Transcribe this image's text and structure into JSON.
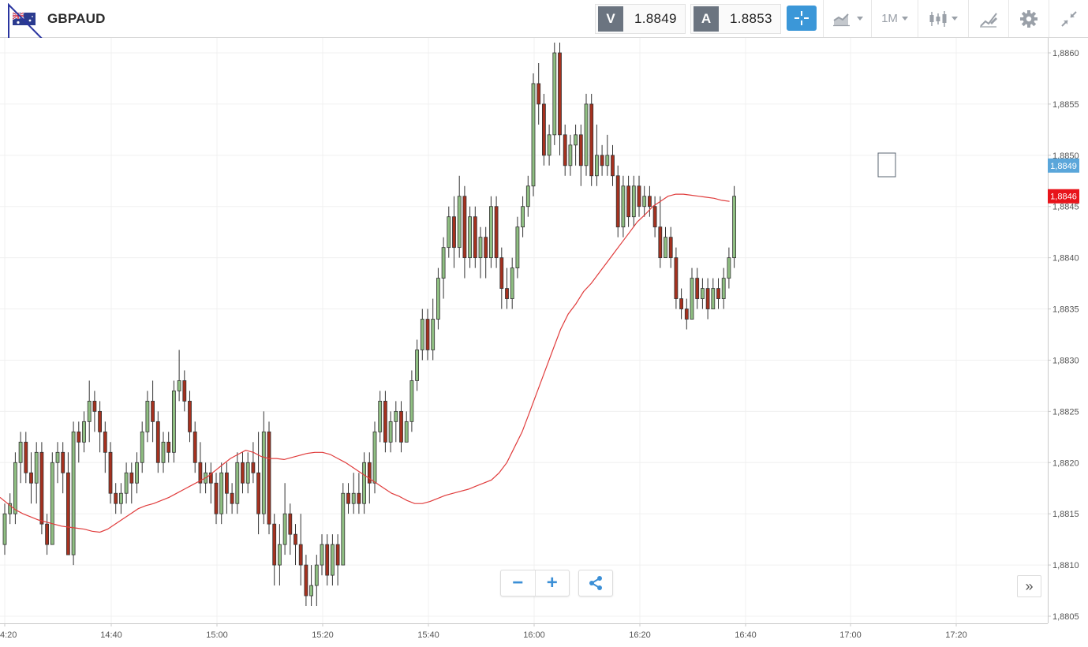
{
  "header": {
    "symbol": "GBPAUD",
    "bid": {
      "letter": "V",
      "value": "1.8849"
    },
    "ask": {
      "letter": "A",
      "value": "1.8853"
    },
    "timeframe_label": "1M",
    "icons": [
      "flag-gb-au-icon",
      "crosshair-icon",
      "chart-type-icon",
      "candlestick-icon",
      "drawing-tools-icon",
      "gear-icon",
      "collapse-icon"
    ]
  },
  "colors": {
    "bull": "#8fbf82",
    "bear": "#a5311f",
    "ma_line": "#e03c3c",
    "last_price_badge": "#e8141b",
    "bid_badge": "#5aa6da",
    "accent": "#3b97d8"
  },
  "chart_data": {
    "type": "candlestick",
    "title": "GBPAUD",
    "interval": "1M",
    "x_tick_labels": [
      "4:20",
      "14:40",
      "15:00",
      "15:20",
      "15:40",
      "16:00",
      "16:20",
      "16:40",
      "17:00",
      "17:20"
    ],
    "y_tick_labels": [
      "1,8805",
      "1,8810",
      "1,8815",
      "1,8820",
      "1,8825",
      "1,8830",
      "1,8835",
      "1,8840",
      "1,8845",
      "1,8850",
      "1,8855",
      "1,8860"
    ],
    "ylim": [
      1.8804,
      1.8861
    ],
    "y_ticks": [
      1.8805,
      1.881,
      1.8815,
      1.882,
      1.8825,
      1.883,
      1.8835,
      1.884,
      1.8845,
      1.885,
      1.8855,
      1.886
    ],
    "grid": true,
    "badges": {
      "bid": {
        "value": 1.8849,
        "label": "1,8849"
      },
      "last": {
        "value": 1.8846,
        "label": "1,8846"
      }
    },
    "candles": [
      [
        1.8812,
        1.8815,
        1.8811,
        1.8816
      ],
      [
        1.8815,
        1.8816,
        1.8814,
        1.8817
      ],
      [
        1.8815,
        1.882,
        1.8814,
        1.8821
      ],
      [
        1.882,
        1.8822,
        1.8818,
        1.8823
      ],
      [
        1.8822,
        1.8819,
        1.8818,
        1.8823
      ],
      [
        1.8819,
        1.8818,
        1.8816,
        1.8821
      ],
      [
        1.8818,
        1.8821,
        1.8816,
        1.8822
      ],
      [
        1.8821,
        1.8814,
        1.8813,
        1.8822
      ],
      [
        1.8814,
        1.8812,
        1.8811,
        1.8815
      ],
      [
        1.8812,
        1.882,
        1.8812,
        1.8821
      ],
      [
        1.882,
        1.8821,
        1.8818,
        1.8822
      ],
      [
        1.8821,
        1.8819,
        1.8817,
        1.8822
      ],
      [
        1.8819,
        1.8811,
        1.8811,
        1.8821
      ],
      [
        1.8811,
        1.8823,
        1.881,
        1.8824
      ],
      [
        1.8823,
        1.8822,
        1.882,
        1.8824
      ],
      [
        1.8822,
        1.8824,
        1.8821,
        1.8825
      ],
      [
        1.8824,
        1.8826,
        1.8822,
        1.8828
      ],
      [
        1.8826,
        1.8825,
        1.8823,
        1.8827
      ],
      [
        1.8825,
        1.8823,
        1.8821,
        1.8826
      ],
      [
        1.8823,
        1.8821,
        1.8819,
        1.8824
      ],
      [
        1.8821,
        1.8817,
        1.8816,
        1.8822
      ],
      [
        1.8817,
        1.8816,
        1.8815,
        1.8818
      ],
      [
        1.8816,
        1.8817,
        1.8815,
        1.8818
      ],
      [
        1.8817,
        1.8819,
        1.8816,
        1.882
      ],
      [
        1.8819,
        1.8818,
        1.8816,
        1.882
      ],
      [
        1.8818,
        1.882,
        1.8817,
        1.8821
      ],
      [
        1.882,
        1.8823,
        1.8819,
        1.8824
      ],
      [
        1.8823,
        1.8826,
        1.8822,
        1.8827
      ],
      [
        1.8826,
        1.8824,
        1.8822,
        1.8828
      ],
      [
        1.8824,
        1.882,
        1.8819,
        1.8825
      ],
      [
        1.882,
        1.8822,
        1.8819,
        1.8823
      ],
      [
        1.8822,
        1.8821,
        1.882,
        1.8823
      ],
      [
        1.8821,
        1.8827,
        1.882,
        1.8828
      ],
      [
        1.8827,
        1.8828,
        1.8826,
        1.8831
      ],
      [
        1.8828,
        1.8826,
        1.8825,
        1.8829
      ],
      [
        1.8826,
        1.8823,
        1.8822,
        1.8827
      ],
      [
        1.8823,
        1.882,
        1.8819,
        1.8824
      ],
      [
        1.882,
        1.8818,
        1.8817,
        1.8822
      ],
      [
        1.8818,
        1.8819,
        1.8817,
        1.882
      ],
      [
        1.8819,
        1.8818,
        1.8816,
        1.882
      ],
      [
        1.8818,
        1.8815,
        1.8814,
        1.8819
      ],
      [
        1.8815,
        1.8819,
        1.8814,
        1.882
      ],
      [
        1.8819,
        1.8817,
        1.8815,
        1.882
      ],
      [
        1.8817,
        1.8816,
        1.8815,
        1.8818
      ],
      [
        1.8816,
        1.882,
        1.8815,
        1.8821
      ],
      [
        1.882,
        1.8818,
        1.8817,
        1.8821
      ],
      [
        1.8818,
        1.882,
        1.8817,
        1.8821
      ],
      [
        1.882,
        1.8819,
        1.8818,
        1.8822
      ],
      [
        1.8819,
        1.8815,
        1.8813,
        1.8823
      ],
      [
        1.8815,
        1.8823,
        1.8814,
        1.8825
      ],
      [
        1.8823,
        1.8814,
        1.8813,
        1.8824
      ],
      [
        1.8814,
        1.881,
        1.8808,
        1.8815
      ],
      [
        1.881,
        1.8812,
        1.8808,
        1.8814
      ],
      [
        1.8812,
        1.8815,
        1.8811,
        1.8818
      ],
      [
        1.8815,
        1.8813,
        1.8811,
        1.8816
      ],
      [
        1.8813,
        1.8812,
        1.881,
        1.8814
      ],
      [
        1.8812,
        1.881,
        1.8808,
        1.8815
      ],
      [
        1.881,
        1.8807,
        1.8806,
        1.8811
      ],
      [
        1.8807,
        1.8808,
        1.8806,
        1.881
      ],
      [
        1.8808,
        1.881,
        1.8806,
        1.8811
      ],
      [
        1.881,
        1.8812,
        1.8809,
        1.8813
      ],
      [
        1.8812,
        1.8809,
        1.8808,
        1.8813
      ],
      [
        1.8809,
        1.8812,
        1.8808,
        1.8813
      ],
      [
        1.8812,
        1.881,
        1.8808,
        1.8813
      ],
      [
        1.881,
        1.8817,
        1.881,
        1.8818
      ],
      [
        1.8817,
        1.8816,
        1.8815,
        1.8818
      ],
      [
        1.8816,
        1.8817,
        1.8815,
        1.8819
      ],
      [
        1.8817,
        1.8816,
        1.8815,
        1.8819
      ],
      [
        1.8816,
        1.882,
        1.8815,
        1.8821
      ],
      [
        1.882,
        1.8818,
        1.8816,
        1.8821
      ],
      [
        1.8818,
        1.8823,
        1.8817,
        1.8824
      ],
      [
        1.8823,
        1.8826,
        1.8822,
        1.8827
      ],
      [
        1.8826,
        1.8822,
        1.8821,
        1.8827
      ],
      [
        1.8822,
        1.8824,
        1.8821,
        1.8825
      ],
      [
        1.8824,
        1.8825,
        1.8822,
        1.8826
      ],
      [
        1.8825,
        1.8822,
        1.8821,
        1.8826
      ],
      [
        1.8822,
        1.8824,
        1.8822,
        1.8825
      ],
      [
        1.8824,
        1.8828,
        1.8823,
        1.8829
      ],
      [
        1.8828,
        1.8831,
        1.8827,
        1.8832
      ],
      [
        1.8831,
        1.8834,
        1.883,
        1.8835
      ],
      [
        1.8834,
        1.8831,
        1.883,
        1.8835
      ],
      [
        1.8831,
        1.8834,
        1.883,
        1.8836
      ],
      [
        1.8834,
        1.8838,
        1.8833,
        1.8839
      ],
      [
        1.8838,
        1.8841,
        1.8836,
        1.8842
      ],
      [
        1.8841,
        1.8844,
        1.884,
        1.8845
      ],
      [
        1.8844,
        1.8841,
        1.8839,
        1.8846
      ],
      [
        1.8841,
        1.8846,
        1.884,
        1.8848
      ],
      [
        1.8846,
        1.884,
        1.8838,
        1.8847
      ],
      [
        1.884,
        1.8844,
        1.8839,
        1.8845
      ],
      [
        1.8844,
        1.884,
        1.8839,
        1.8845
      ],
      [
        1.884,
        1.8842,
        1.8838,
        1.8843
      ],
      [
        1.8842,
        1.884,
        1.8838,
        1.8843
      ],
      [
        1.884,
        1.8845,
        1.8839,
        1.8846
      ],
      [
        1.8845,
        1.884,
        1.8839,
        1.8846
      ],
      [
        1.884,
        1.8837,
        1.8835,
        1.8841
      ],
      [
        1.8837,
        1.8836,
        1.8835,
        1.8839
      ],
      [
        1.8836,
        1.8839,
        1.8835,
        1.884
      ],
      [
        1.8839,
        1.8843,
        1.8838,
        1.8844
      ],
      [
        1.8843,
        1.8845,
        1.8842,
        1.8846
      ],
      [
        1.8845,
        1.8847,
        1.8844,
        1.8848
      ],
      [
        1.8847,
        1.8857,
        1.8846,
        1.8858
      ],
      [
        1.8857,
        1.8855,
        1.8853,
        1.8859
      ],
      [
        1.8855,
        1.885,
        1.8849,
        1.8856
      ],
      [
        1.885,
        1.8852,
        1.8849,
        1.8853
      ],
      [
        1.8852,
        1.886,
        1.8851,
        1.8861
      ],
      [
        1.886,
        1.8852,
        1.885,
        1.8861
      ],
      [
        1.8852,
        1.8849,
        1.8848,
        1.8853
      ],
      [
        1.8849,
        1.8851,
        1.8848,
        1.8852
      ],
      [
        1.8851,
        1.8852,
        1.8849,
        1.8853
      ],
      [
        1.8852,
        1.8849,
        1.8847,
        1.8853
      ],
      [
        1.8849,
        1.8855,
        1.8848,
        1.8856
      ],
      [
        1.8855,
        1.8848,
        1.8847,
        1.8856
      ],
      [
        1.8848,
        1.885,
        1.8847,
        1.8853
      ],
      [
        1.885,
        1.8849,
        1.8848,
        1.8851
      ],
      [
        1.8849,
        1.885,
        1.8848,
        1.8852
      ],
      [
        1.885,
        1.8848,
        1.8847,
        1.8851
      ],
      [
        1.8848,
        1.8843,
        1.8842,
        1.8849
      ],
      [
        1.8843,
        1.8847,
        1.8842,
        1.8848
      ],
      [
        1.8847,
        1.8844,
        1.8843,
        1.8848
      ],
      [
        1.8844,
        1.8847,
        1.8843,
        1.8848
      ],
      [
        1.8847,
        1.8845,
        1.8844,
        1.8848
      ],
      [
        1.8845,
        1.8846,
        1.8844,
        1.8847
      ],
      [
        1.8846,
        1.8845,
        1.8844,
        1.8847
      ],
      [
        1.8845,
        1.8843,
        1.8842,
        1.8846
      ],
      [
        1.8843,
        1.884,
        1.8839,
        1.8846
      ],
      [
        1.884,
        1.8842,
        1.884,
        1.8843
      ],
      [
        1.8842,
        1.884,
        1.8839,
        1.8843
      ],
      [
        1.884,
        1.8836,
        1.8835,
        1.8841
      ],
      [
        1.8836,
        1.8835,
        1.8834,
        1.8837
      ],
      [
        1.8835,
        1.8834,
        1.8833,
        1.8836
      ],
      [
        1.8834,
        1.8838,
        1.8834,
        1.8839
      ],
      [
        1.8838,
        1.8836,
        1.8835,
        1.8839
      ],
      [
        1.8836,
        1.8837,
        1.8835,
        1.8838
      ],
      [
        1.8837,
        1.8835,
        1.8834,
        1.8838
      ],
      [
        1.8835,
        1.8837,
        1.8835,
        1.8838
      ],
      [
        1.8837,
        1.8836,
        1.8835,
        1.8838
      ],
      [
        1.8836,
        1.8838,
        1.8835,
        1.8839
      ],
      [
        1.8838,
        1.884,
        1.8837,
        1.8841
      ],
      [
        1.884,
        1.8846,
        1.8839,
        1.8847
      ]
    ],
    "moving_average": [
      1.88166,
      1.8816,
      1.88154,
      1.8815,
      1.88147,
      1.88144,
      1.88142,
      1.8814,
      1.88138,
      1.88137,
      1.88136,
      1.88135,
      1.88133,
      1.88132,
      1.88135,
      1.8814,
      1.88145,
      1.8815,
      1.88155,
      1.88158,
      1.8816,
      1.88163,
      1.88166,
      1.8817,
      1.88174,
      1.88178,
      1.88182,
      1.88186,
      1.88192,
      1.88198,
      1.88204,
      1.88208,
      1.88212,
      1.8821,
      1.88206,
      1.88204,
      1.88204,
      1.88203,
      1.88205,
      1.88207,
      1.88209,
      1.8821,
      1.8821,
      1.88208,
      1.88204,
      1.882,
      1.88195,
      1.8819,
      1.88185,
      1.8818,
      1.88175,
      1.8817,
      1.88167,
      1.88163,
      1.8816,
      1.8816,
      1.88162,
      1.88165,
      1.88168,
      1.8817,
      1.88172,
      1.88174,
      1.88177,
      1.8818,
      1.88183,
      1.8819,
      1.882,
      1.88215,
      1.8823,
      1.8825,
      1.8827,
      1.8829,
      1.8831,
      1.8833,
      1.88345,
      1.88355,
      1.88367,
      1.88375,
      1.88385,
      1.88395,
      1.88405,
      1.88415,
      1.88425,
      1.88435,
      1.88442,
      1.8845,
      1.88455,
      1.8846,
      1.88462,
      1.88462,
      1.88461,
      1.8846,
      1.88459,
      1.88458,
      1.88456,
      1.88455
    ]
  },
  "controls": {
    "zoom_out": "−",
    "zoom_in": "+",
    "scroll_end": "»"
  }
}
